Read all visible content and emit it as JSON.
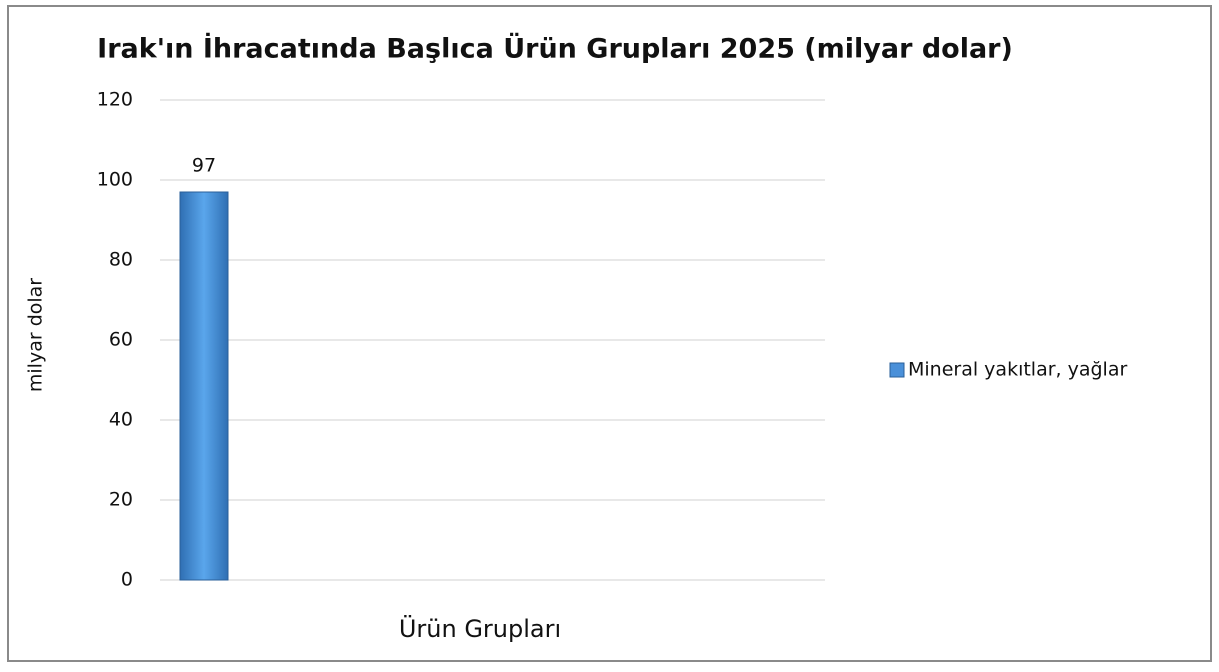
{
  "chart_data": {
    "type": "bar",
    "title": "Irak'ın İhracatında Başlıca Ürün Grupları 2025 (milyar dolar)",
    "x_label": "Ürün Grupları",
    "y_label": "milyar dolar",
    "categories": [
      null
    ],
    "series": [
      {
        "name": "Mineral yakıtlar, yağlar",
        "color": "#4a90d9",
        "values": [
          97
        ]
      }
    ],
    "ylim": [
      0,
      120
    ],
    "yticks": [
      0,
      20,
      40,
      60,
      80,
      100,
      120
    ],
    "grid": true,
    "legend": "right",
    "data_labels": true
  }
}
